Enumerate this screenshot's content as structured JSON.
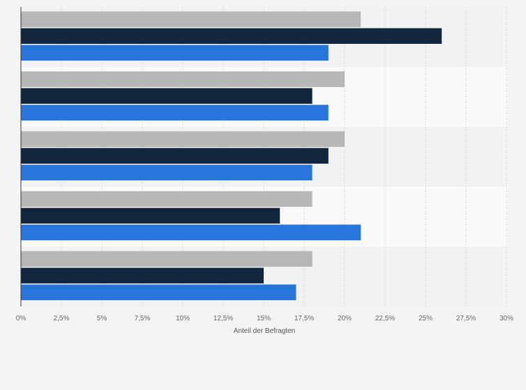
{
  "chart_data": {
    "type": "bar",
    "orientation": "horizontal",
    "categories": [
      "",
      "",
      "",
      "",
      ""
    ],
    "series": [
      {
        "name": "",
        "color": "#b7b7b7",
        "values": [
          21,
          20,
          20,
          18,
          18
        ]
      },
      {
        "name": "",
        "color": "#12263f",
        "values": [
          26,
          18,
          19,
          16,
          15
        ]
      },
      {
        "name": "",
        "color": "#2876dd",
        "values": [
          19,
          19,
          18,
          21,
          17
        ]
      }
    ],
    "xlabel": "Anteil der Befragten",
    "xlim": [
      0,
      30
    ],
    "xticks": [
      0,
      2.5,
      5,
      7.5,
      10,
      12.5,
      15,
      17.5,
      20,
      22.5,
      25,
      27.5,
      30
    ],
    "xtick_labels": [
      "0%",
      "2,5%",
      "5%",
      "7,5%",
      "10%",
      "12,5%",
      "15%",
      "17,5%",
      "20%",
      "22,5%",
      "25%",
      "27,5%",
      "30%"
    ],
    "grid": true,
    "legend": "none"
  }
}
